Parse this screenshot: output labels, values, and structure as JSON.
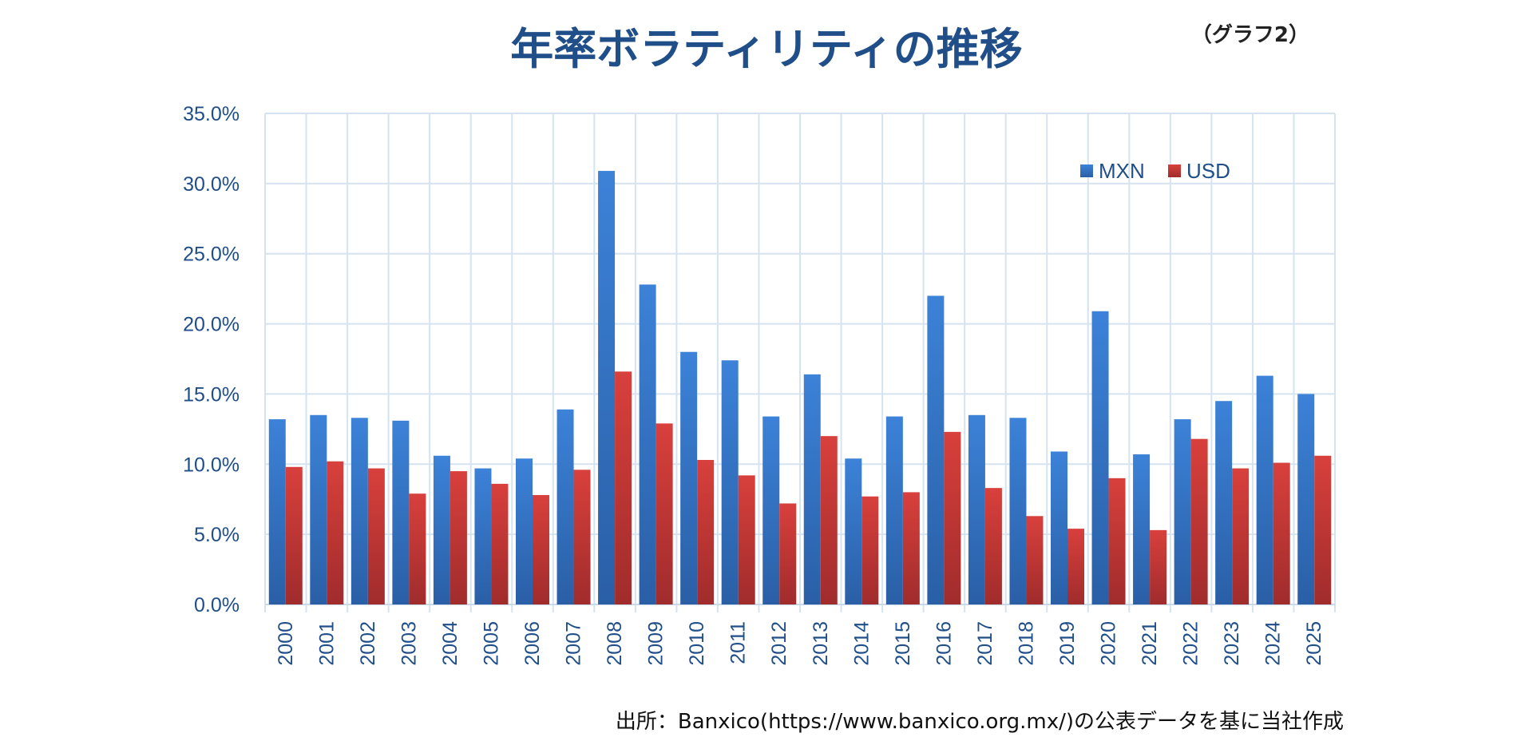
{
  "chart_data": {
    "type": "bar",
    "title": "年率ボラティリティの推移",
    "graph_label": "（グラフ2）",
    "source": "出所：Banxico(https://www.banxico.org.mx/)の公表データを基に当社作成",
    "categories": [
      "2000",
      "2001",
      "2002",
      "2003",
      "2004",
      "2005",
      "2006",
      "2007",
      "2008",
      "2009",
      "2010",
      "2011",
      "2012",
      "2013",
      "2014",
      "2015",
      "2016",
      "2017",
      "2018",
      "2019",
      "2020",
      "2021",
      "2022",
      "2023",
      "2024",
      "2025"
    ],
    "series": [
      {
        "name": "MXN",
        "color": "#3a7bd1",
        "values": [
          13.2,
          13.5,
          13.3,
          13.1,
          10.6,
          9.7,
          10.4,
          13.9,
          30.9,
          22.8,
          18.0,
          17.4,
          13.4,
          16.4,
          10.4,
          13.4,
          22.0,
          13.5,
          13.3,
          10.9,
          20.9,
          10.7,
          13.2,
          14.5,
          16.3,
          15.0
        ]
      },
      {
        "name": "USD",
        "color": "#d03a3a",
        "values": [
          9.8,
          10.2,
          9.7,
          7.9,
          9.5,
          8.6,
          7.8,
          9.6,
          16.6,
          12.9,
          10.3,
          9.2,
          7.2,
          12.0,
          7.7,
          8.0,
          12.3,
          8.3,
          6.3,
          5.4,
          9.0,
          5.3,
          11.8,
          9.7,
          10.1,
          10.6
        ]
      }
    ],
    "ylim": [
      0,
      35
    ],
    "ytick_step": 5,
    "ytick_labels": [
      "0.0%",
      "5.0%",
      "10.0%",
      "15.0%",
      "20.0%",
      "25.0%",
      "30.0%",
      "35.0%"
    ],
    "grid": true,
    "legend_position": "top-right",
    "xlabel": "",
    "ylabel": ""
  }
}
